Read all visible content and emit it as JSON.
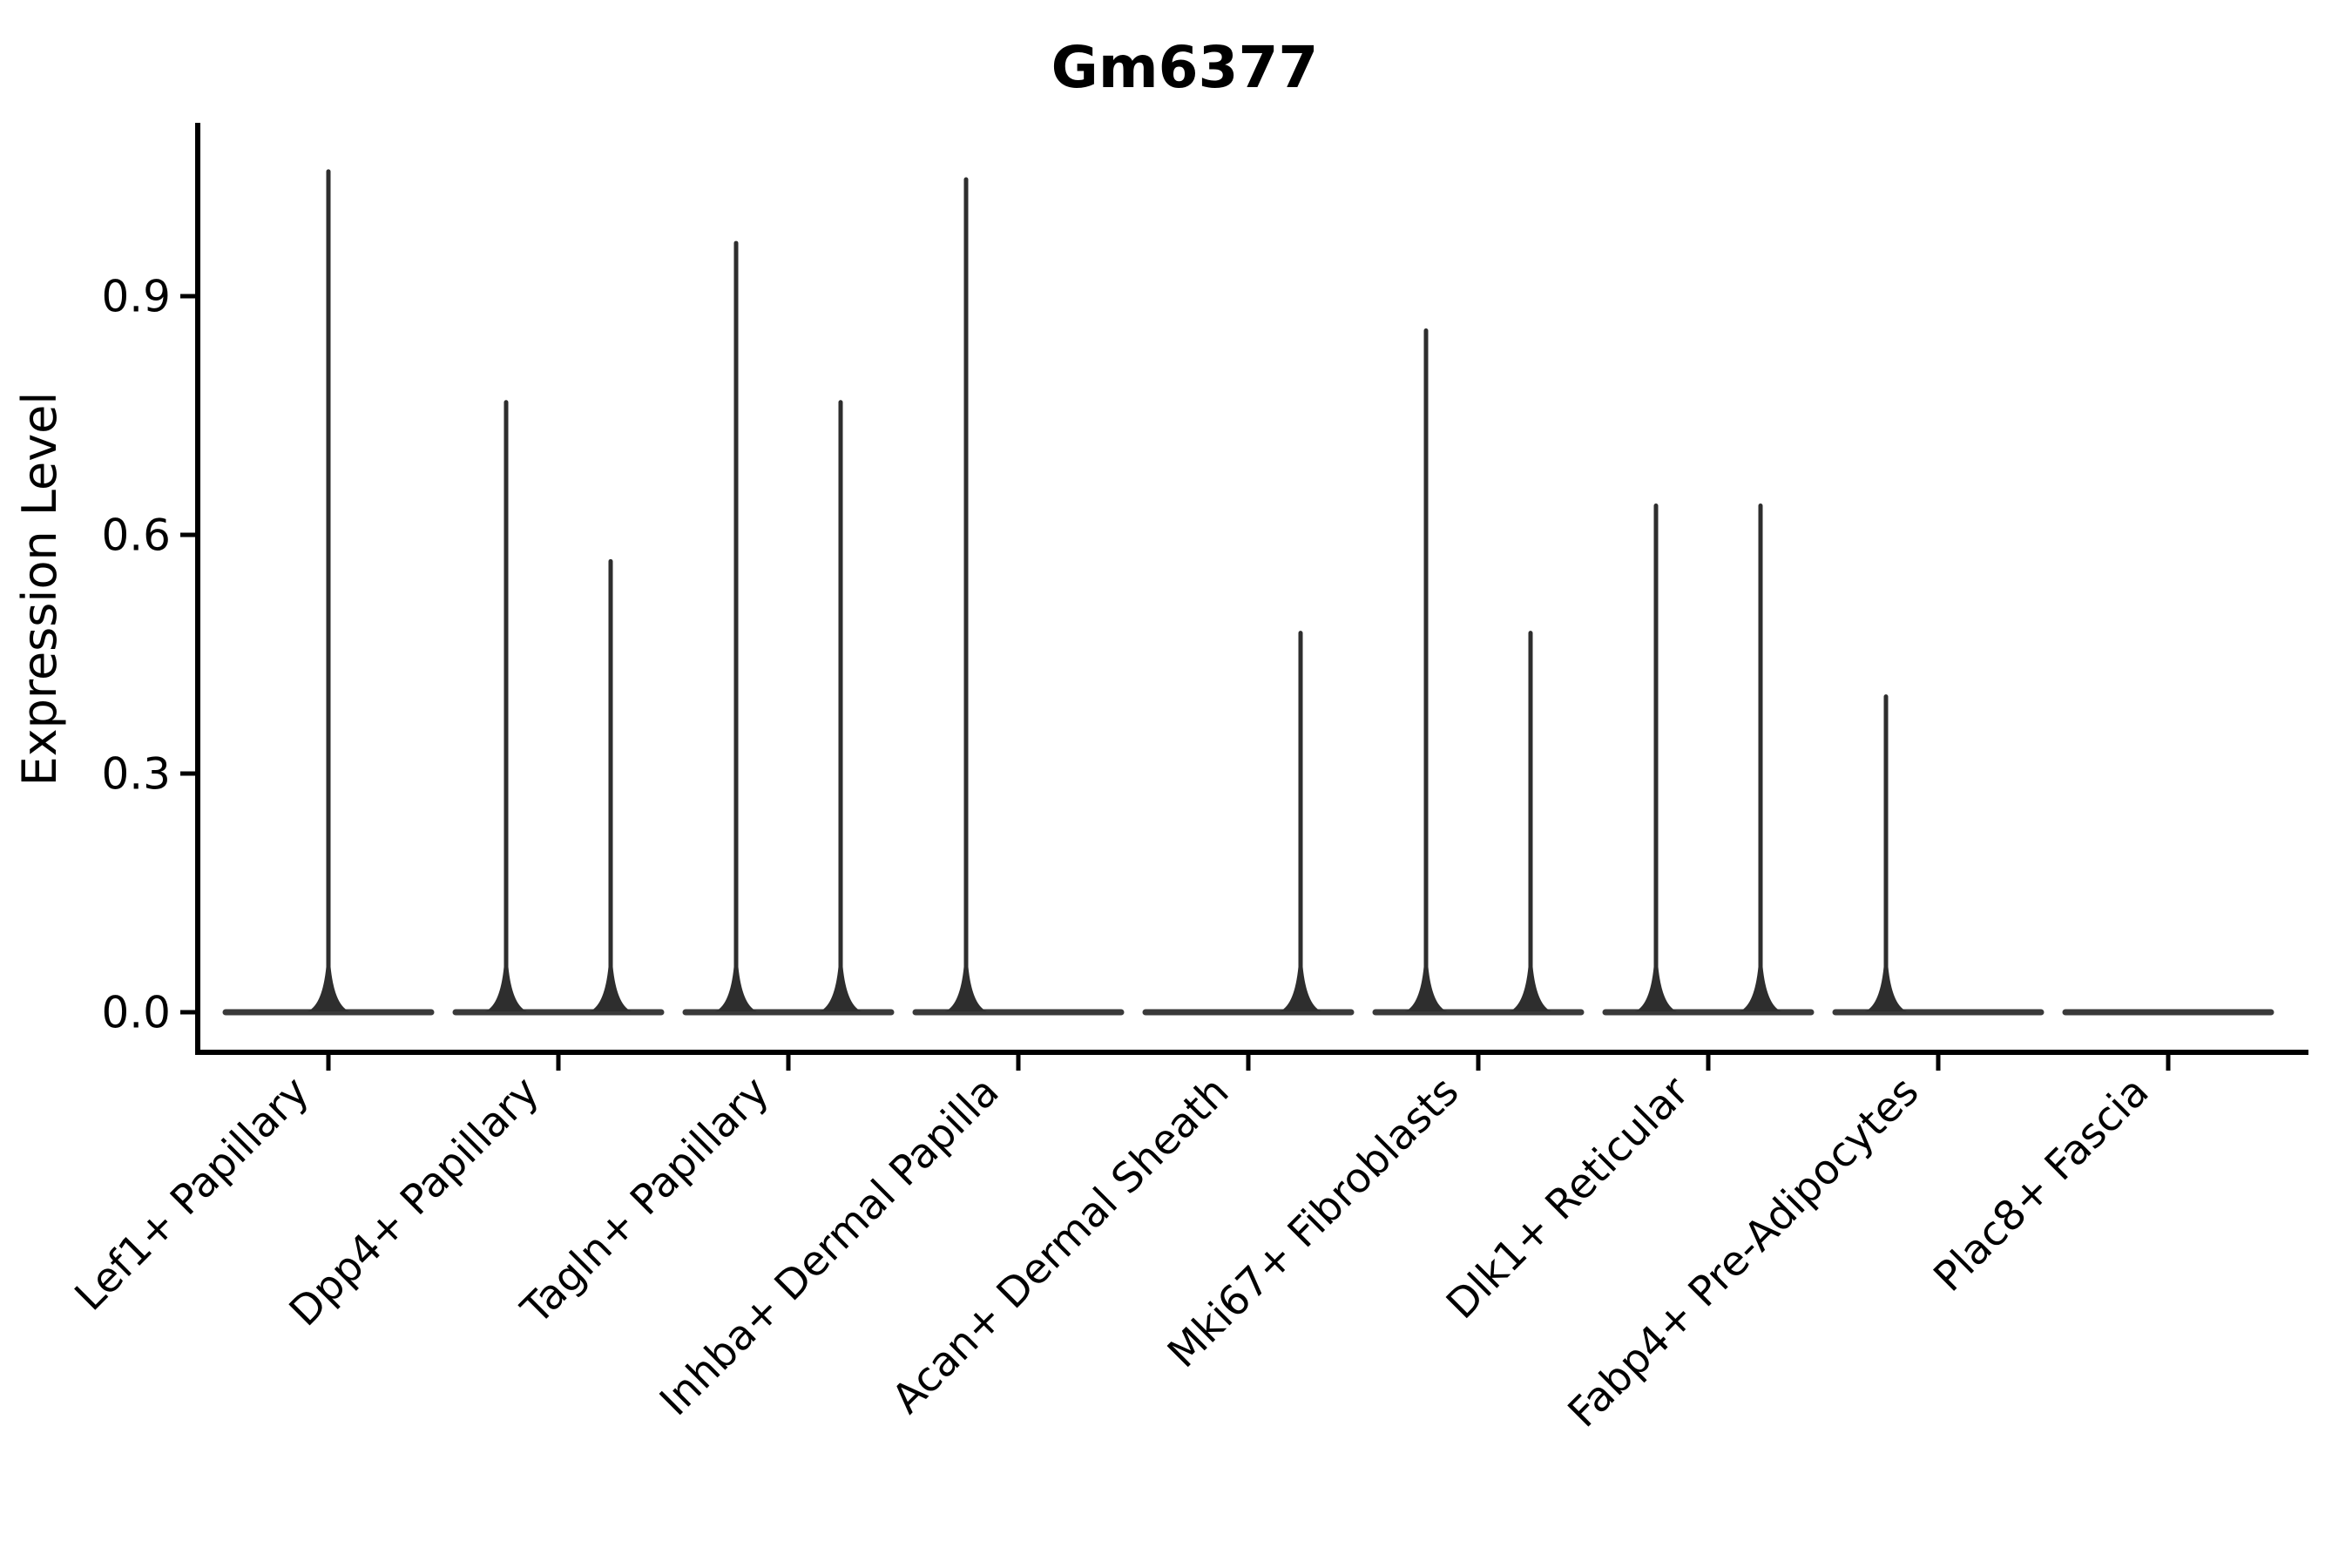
{
  "chart_data": {
    "type": "violin",
    "title": "Gm6377",
    "ylabel": "Expression Level",
    "xlabel": "",
    "ytick_labels": [
      "0.0",
      "0.3",
      "0.6",
      "0.9"
    ],
    "ytick_values": [
      0.0,
      0.3,
      0.6,
      0.9
    ],
    "ylim": [
      -0.05,
      1.12
    ],
    "grid": false,
    "legend": "none",
    "style": "thin-spike violins (most cells at 0 expression), black outline, no fill, two dodged violins per category where present",
    "categories": [
      "Lef1+ Papillary",
      "Dpp4+ Papillary",
      "Tagln+ Papillary",
      "Inhba+ Dermal Papilla",
      "Acan+ Dermal Sheath",
      "Mki67+ Fibroblasts",
      "Dlk1+ Reticular",
      "Fabp4+ Pre-Adipocytes",
      "Plac8+ Fascia"
    ],
    "violins": [
      {
        "category": "Lef1+ Papillary",
        "layout": "single",
        "max_expression": [
          1.06
        ]
      },
      {
        "category": "Dpp4+ Papillary",
        "layout": "pair",
        "max_expression": [
          0.77,
          0.57
        ]
      },
      {
        "category": "Tagln+ Papillary",
        "layout": "pair",
        "max_expression": [
          0.97,
          0.77
        ]
      },
      {
        "category": "Inhba+ Dermal Papilla",
        "layout": "pair",
        "max_expression": [
          1.05,
          0
        ]
      },
      {
        "category": "Acan+ Dermal Sheath",
        "layout": "pair",
        "max_expression": [
          0,
          0.48
        ]
      },
      {
        "category": "Mki67+ Fibroblasts",
        "layout": "pair",
        "max_expression": [
          0.86,
          0.48
        ]
      },
      {
        "category": "Dlk1+ Reticular",
        "layout": "pair",
        "max_expression": [
          0.64,
          0.64
        ]
      },
      {
        "category": "Fabp4+ Pre-Adipocytes",
        "layout": "pair",
        "max_expression": [
          0.4,
          0
        ]
      },
      {
        "category": "Plac8+ Fascia",
        "layout": "pair",
        "max_expression": [
          0,
          0
        ]
      }
    ],
    "colors": {
      "violin_stroke": "#2e2e2e",
      "baseline_stroke": "#3a3a3a",
      "spine": "#000000",
      "text": "#000000",
      "background": "#ffffff"
    }
  }
}
